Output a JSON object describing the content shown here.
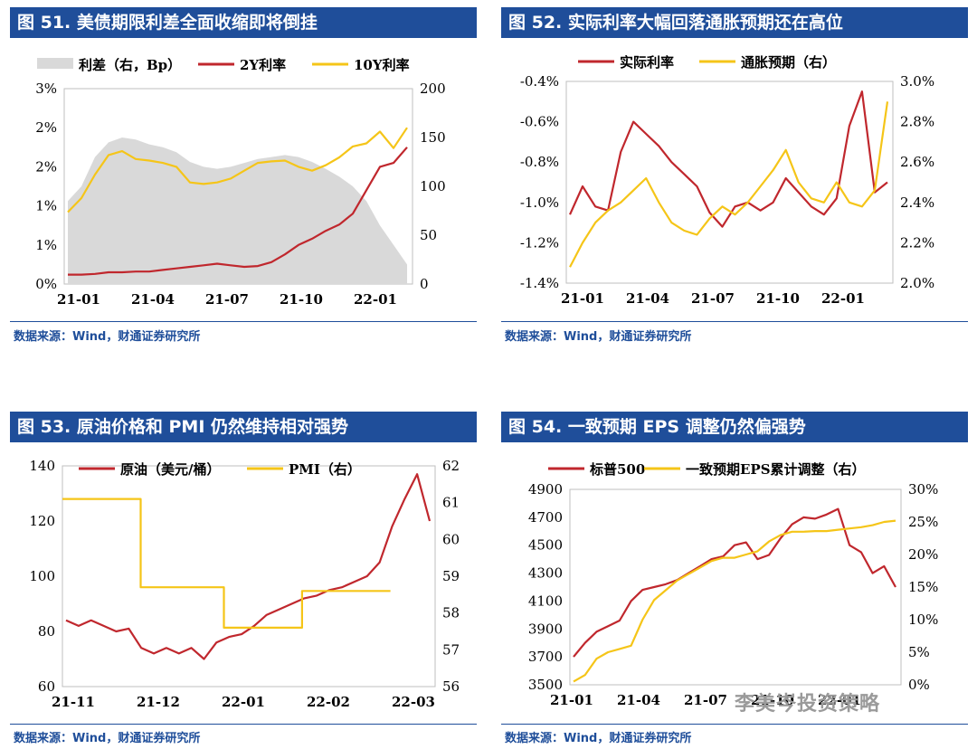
{
  "panels": [
    {
      "title": "图 51. 美债期限利差全面收缩即将倒挂",
      "source": "数据来源：Wind，财通证券研究所",
      "chart_data": {
        "type": "line",
        "x_ticks": [
          "21-01",
          "21-04",
          "21-07",
          "21-10",
          "22-01"
        ],
        "y_left_ticks": [
          "0%",
          "1%",
          "1%",
          "2%",
          "2%",
          "3%"
        ],
        "y_right_ticks": [
          "0",
          "50",
          "100",
          "150",
          "200"
        ],
        "y_left_range": [
          0,
          2.5
        ],
        "y_right_range": [
          0,
          200
        ],
        "legend": [
          {
            "name": "利差（右，Bp）",
            "kind": "area"
          },
          {
            "name": "2Y利率",
            "kind": "line"
          },
          {
            "name": "10Y利率",
            "kind": "line"
          }
        ],
        "series": [
          {
            "name": "利差（右，Bp）",
            "axis": "right",
            "values": [
              85,
              100,
              130,
              145,
              150,
              148,
              143,
              140,
              135,
              125,
              120,
              118,
              120,
              124,
              128,
              130,
              132,
              130,
              125,
              118,
              110,
              100,
              85,
              60,
              40,
              20
            ]
          },
          {
            "name": "2Y利率",
            "axis": "left",
            "values": [
              0.12,
              0.12,
              0.13,
              0.15,
              0.15,
              0.16,
              0.16,
              0.18,
              0.2,
              0.22,
              0.24,
              0.26,
              0.24,
              0.22,
              0.23,
              0.28,
              0.38,
              0.5,
              0.58,
              0.68,
              0.76,
              0.9,
              1.2,
              1.5,
              1.55,
              1.75
            ]
          },
          {
            "name": "10Y利率",
            "axis": "left",
            "values": [
              0.92,
              1.1,
              1.4,
              1.65,
              1.7,
              1.6,
              1.58,
              1.55,
              1.5,
              1.3,
              1.28,
              1.3,
              1.35,
              1.45,
              1.55,
              1.57,
              1.58,
              1.5,
              1.45,
              1.52,
              1.62,
              1.76,
              1.8,
              1.95,
              1.74,
              2.0
            ]
          }
        ],
        "colors": {
          "area": "#d9d9d9",
          "2Y": "#c0272d",
          "10Y": "#f5c518"
        }
      }
    },
    {
      "title": "图 52. 实际利率大幅回落通胀预期还在高位",
      "source": "数据来源：Wind，财通证券研究所",
      "chart_data": {
        "type": "line",
        "x_ticks": [
          "21-01",
          "21-04",
          "21-07",
          "21-10",
          "22-01"
        ],
        "y_left_ticks": [
          "-1.4%",
          "-1.2%",
          "-1.0%",
          "-0.8%",
          "-0.6%",
          "-0.4%"
        ],
        "y_right_ticks": [
          "2.0%",
          "2.2%",
          "2.4%",
          "2.6%",
          "2.8%",
          "3.0%"
        ],
        "y_left_range": [
          -1.4,
          -0.4
        ],
        "y_right_range": [
          2.0,
          3.0
        ],
        "legend": [
          {
            "name": "实际利率",
            "kind": "line"
          },
          {
            "name": "通胀预期（右）",
            "kind": "line"
          }
        ],
        "series": [
          {
            "name": "实际利率",
            "axis": "left",
            "values": [
              -1.06,
              -0.92,
              -1.02,
              -1.04,
              -0.75,
              -0.6,
              -0.66,
              -0.72,
              -0.8,
              -0.86,
              -0.92,
              -1.05,
              -1.12,
              -1.02,
              -1.0,
              -1.04,
              -1.0,
              -0.88,
              -0.95,
              -1.02,
              -1.06,
              -0.98,
              -0.62,
              -0.45,
              -0.95,
              -0.9
            ]
          },
          {
            "name": "通胀预期（右）",
            "axis": "right",
            "values": [
              2.08,
              2.2,
              2.3,
              2.36,
              2.4,
              2.46,
              2.52,
              2.4,
              2.3,
              2.26,
              2.24,
              2.32,
              2.38,
              2.34,
              2.4,
              2.48,
              2.56,
              2.66,
              2.5,
              2.42,
              2.4,
              2.5,
              2.4,
              2.38,
              2.46,
              2.9
            ]
          }
        ],
        "colors": {
          "a": "#c0272d",
          "b": "#f5c518"
        }
      }
    },
    {
      "title": "图 53. 原油价格和 PMI 仍然维持相对强势",
      "source": "数据来源：Wind，财通证券研究所",
      "chart_data": {
        "type": "line",
        "x_ticks": [
          "21-11",
          "21-12",
          "22-01",
          "22-02",
          "22-03"
        ],
        "y_left_ticks": [
          "60",
          "80",
          "100",
          "120",
          "140"
        ],
        "y_right_ticks": [
          "56",
          "57",
          "58",
          "59",
          "60",
          "61",
          "62"
        ],
        "y_left_range": [
          60,
          140
        ],
        "y_right_range": [
          56,
          62
        ],
        "legend": [
          {
            "name": "原油（美元/桶）",
            "kind": "line"
          },
          {
            "name": "PMI（右）",
            "kind": "line"
          }
        ],
        "series": [
          {
            "name": "原油（美元/桶）",
            "axis": "left",
            "values": [
              84,
              82,
              84,
              82,
              80,
              81,
              74,
              72,
              74,
              72,
              74,
              70,
              76,
              78,
              79,
              82,
              86,
              88,
              90,
              92,
              93,
              95,
              96,
              98,
              100,
              105,
              118,
              128,
              137,
              120
            ]
          },
          {
            "name": "PMI（右）",
            "axis": "right",
            "x_steps": [
              [
                0,
                61.1
              ],
              [
                0.31,
                61.1
              ],
              [
                0.31,
                58.7
              ],
              [
                0.64,
                58.7
              ],
              [
                0.64,
                57.6
              ],
              [
                0.95,
                57.6
              ],
              [
                0.95,
                58.6
              ],
              [
                1.3,
                58.6
              ]
            ]
          }
        ],
        "colors": {
          "a": "#c0272d",
          "b": "#f5c518"
        }
      }
    },
    {
      "title": "图 54. 一致预期 EPS 调整仍然偏强势",
      "source": "数据来源：Wind，财通证券研究所",
      "chart_data": {
        "type": "line",
        "x_ticks": [
          "21-01",
          "21-04",
          "21-07",
          "21-10",
          "22-01"
        ],
        "y_left_ticks": [
          "3500",
          "3700",
          "3900",
          "4100",
          "4300",
          "4500",
          "4700",
          "4900"
        ],
        "y_right_ticks": [
          "0%",
          "5%",
          "10%",
          "15%",
          "20%",
          "25%",
          "30%"
        ],
        "y_left_range": [
          3500,
          4900
        ],
        "y_right_range": [
          0,
          30
        ],
        "legend": [
          {
            "name": "标普500",
            "kind": "line"
          },
          {
            "name": "一致预期EPS累计调整（右）",
            "kind": "line"
          }
        ],
        "series": [
          {
            "name": "标普500",
            "axis": "left",
            "values": [
              3700,
              3800,
              3880,
              3920,
              3960,
              4100,
              4180,
              4200,
              4220,
              4250,
              4300,
              4350,
              4400,
              4420,
              4500,
              4520,
              4400,
              4430,
              4550,
              4650,
              4700,
              4690,
              4720,
              4760,
              4500,
              4450,
              4300,
              4350,
              4200
            ]
          },
          {
            "name": "一致预期EPS累计调整（右）",
            "axis": "right",
            "values": [
              0.5,
              1.5,
              4,
              5,
              5.5,
              6,
              10,
              13,
              14.5,
              16,
              17,
              18,
              19,
              19.5,
              19.5,
              20,
              20.5,
              22,
              23,
              23.5,
              23.5,
              23.6,
              23.6,
              23.8,
              24,
              24.2,
              24.5,
              25,
              25.2
            ]
          }
        ],
        "colors": {
          "a": "#c0272d",
          "b": "#f5c518"
        }
      }
    }
  ],
  "watermark": "李美岑投资策略"
}
